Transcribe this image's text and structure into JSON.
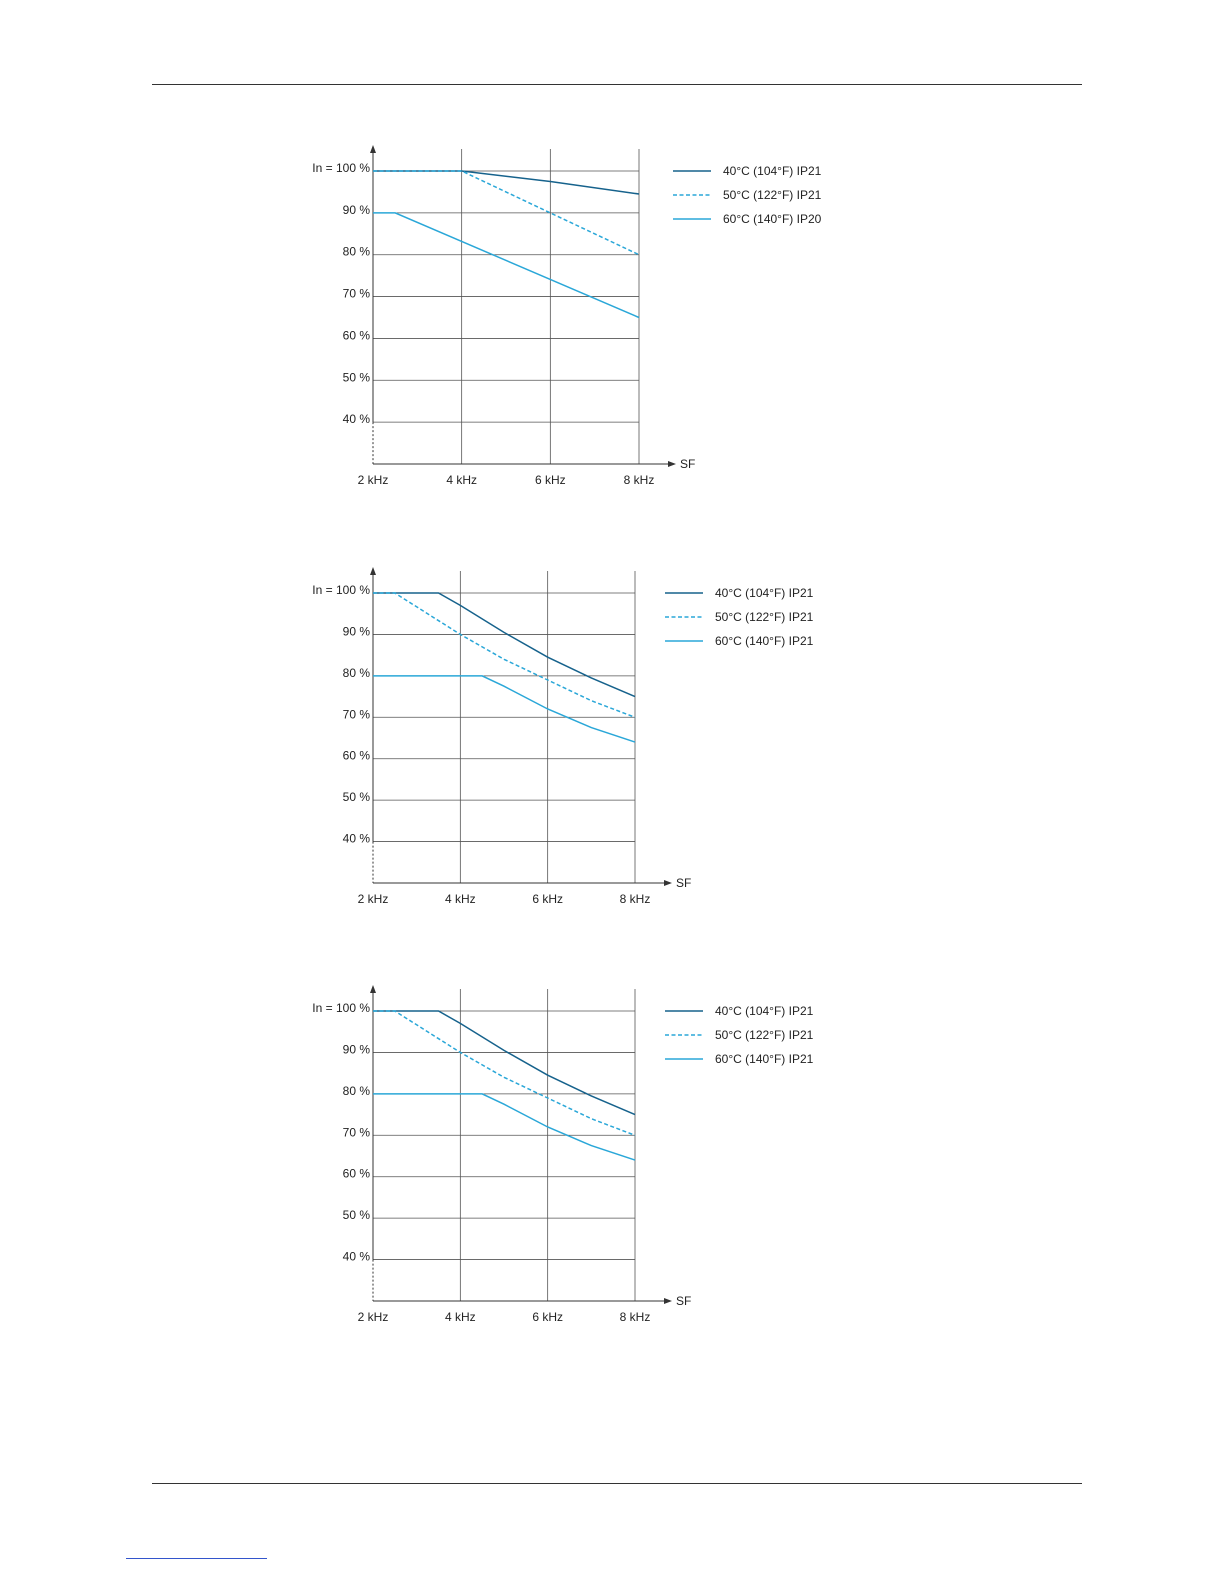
{
  "colors": {
    "series_dark": "#16628c",
    "series_light": "#2aa7d8",
    "grid": "#555555",
    "axis": "#333333"
  },
  "chart_data": [
    {
      "type": "line",
      "xlabel": "SF",
      "ylabel": "",
      "x_tick_labels": [
        "2 kHz",
        "4 kHz",
        "6 kHz",
        "8 kHz"
      ],
      "y_tick_labels": [
        "In = 100 %",
        "90 %",
        "80 %",
        "70 %",
        "60 %",
        "50 %",
        "40 %"
      ],
      "xlim": [
        2,
        8
      ],
      "ylim": [
        30,
        100
      ],
      "grid": true,
      "legend_position": "right",
      "series": [
        {
          "name": "40°C (104°F) IP21",
          "style": "solid",
          "color": "dark",
          "x": [
            2,
            4,
            6,
            8
          ],
          "y": [
            100,
            100,
            97.5,
            94.5
          ]
        },
        {
          "name": "50°C (122°F) IP21",
          "style": "dashed",
          "color": "light",
          "x": [
            2,
            4,
            6,
            8
          ],
          "y": [
            100,
            100,
            90,
            80
          ]
        },
        {
          "name": "60°C (140°F) IP20",
          "style": "solid",
          "color": "light",
          "x": [
            2,
            2.5,
            8
          ],
          "y": [
            90,
            90,
            65
          ]
        }
      ]
    },
    {
      "type": "line",
      "xlabel": "SF",
      "ylabel": "",
      "x_tick_labels": [
        "2 kHz",
        "4 kHz",
        "6 kHz",
        "8 kHz"
      ],
      "y_tick_labels": [
        "In = 100 %",
        "90 %",
        "80 %",
        "70 %",
        "60 %",
        "50 %",
        "40 %"
      ],
      "xlim": [
        2,
        8
      ],
      "ylim": [
        30,
        100
      ],
      "grid": true,
      "legend_position": "right",
      "series": [
        {
          "name": "40°C (104°F) IP21",
          "style": "solid",
          "color": "dark",
          "x": [
            2,
            3.5,
            4,
            5,
            6,
            7,
            8
          ],
          "y": [
            100,
            100,
            97,
            90.5,
            84.5,
            79.5,
            75
          ]
        },
        {
          "name": "50°C (122°F) IP21",
          "style": "dashed",
          "color": "light",
          "x": [
            2,
            2.5,
            4,
            5,
            6,
            7,
            8
          ],
          "y": [
            100,
            100,
            90,
            84,
            79,
            74,
            70
          ]
        },
        {
          "name": "60°C (140°F) IP21",
          "style": "solid",
          "color": "light",
          "x": [
            2,
            4.5,
            5,
            6,
            7,
            8
          ],
          "y": [
            80,
            80,
            77.5,
            72,
            67.5,
            64
          ]
        }
      ]
    },
    {
      "type": "line",
      "xlabel": "SF",
      "ylabel": "",
      "x_tick_labels": [
        "2 kHz",
        "4 kHz",
        "6 kHz",
        "8 kHz"
      ],
      "y_tick_labels": [
        "In = 100 %",
        "90 %",
        "80 %",
        "70 %",
        "60 %",
        "50 %",
        "40 %"
      ],
      "xlim": [
        2,
        8
      ],
      "ylim": [
        30,
        100
      ],
      "grid": true,
      "legend_position": "right",
      "series": [
        {
          "name": "40°C (104°F) IP21",
          "style": "solid",
          "color": "dark",
          "x": [
            2,
            3.5,
            4,
            5,
            6,
            7,
            8
          ],
          "y": [
            100,
            100,
            97,
            90.5,
            84.5,
            79.5,
            75
          ]
        },
        {
          "name": "50°C (122°F) IP21",
          "style": "dashed",
          "color": "light",
          "x": [
            2,
            2.5,
            4,
            5,
            6,
            7,
            8
          ],
          "y": [
            100,
            100,
            90,
            84,
            79,
            74,
            70
          ]
        },
        {
          "name": "60°C (140°F) IP21",
          "style": "solid",
          "color": "light",
          "x": [
            2,
            4.5,
            5,
            6,
            7,
            8
          ],
          "y": [
            80,
            80,
            77.5,
            72,
            67.5,
            64
          ]
        }
      ]
    }
  ]
}
